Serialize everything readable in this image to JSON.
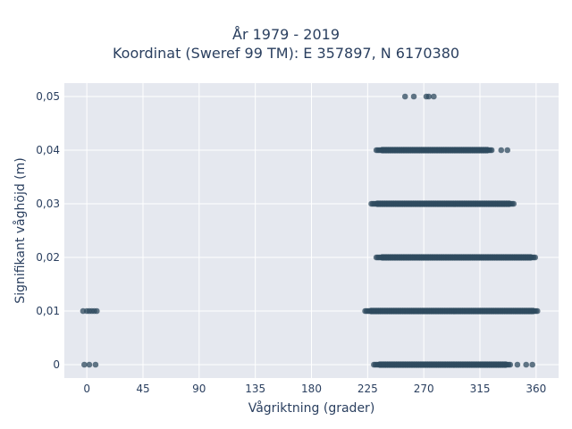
{
  "chart_data": {
    "type": "scatter",
    "title_lines": [
      "År 1979 - 2019",
      "Koordinat (Sweref 99 TM): E 357897, N 6170380"
    ],
    "xlabel": "Vågriktning (grader)",
    "ylabel": "Signifikant våghöjd (m)",
    "xlim": [
      -18,
      378
    ],
    "ylim": [
      -0.0025,
      0.0525
    ],
    "x_ticks": [
      0,
      45,
      90,
      135,
      180,
      225,
      270,
      315,
      360
    ],
    "x_tick_labels": [
      "0",
      "45",
      "90",
      "135",
      "180",
      "225",
      "270",
      "315",
      "360"
    ],
    "y_ticks": [
      0,
      0.01,
      0.02,
      0.03,
      0.04,
      0.05
    ],
    "y_tick_labels": [
      "0",
      "0,01",
      "0,02",
      "0,03",
      "0,04",
      "0,05"
    ],
    "grid": true,
    "marker_color": "#2f4b5f",
    "plot_bg": "#e5e8ef",
    "bands": [
      {
        "y": 0.05,
        "points": [
          255,
          262,
          272,
          274,
          278
        ]
      },
      {
        "y": 0.04,
        "from": 232,
        "to": 325,
        "extra": [
          332,
          337
        ]
      },
      {
        "y": 0.03,
        "from": 228,
        "to": 343
      },
      {
        "y": 0.02,
        "from": 232,
        "to": 360
      },
      {
        "y": 0.01,
        "from": 223,
        "to": 362,
        "extra": [
          -3,
          0,
          2,
          4,
          6,
          8
        ]
      },
      {
        "y": 0.0,
        "from": 230,
        "to": 340,
        "extra": [
          -2,
          2,
          7,
          345,
          352,
          357
        ]
      }
    ]
  }
}
